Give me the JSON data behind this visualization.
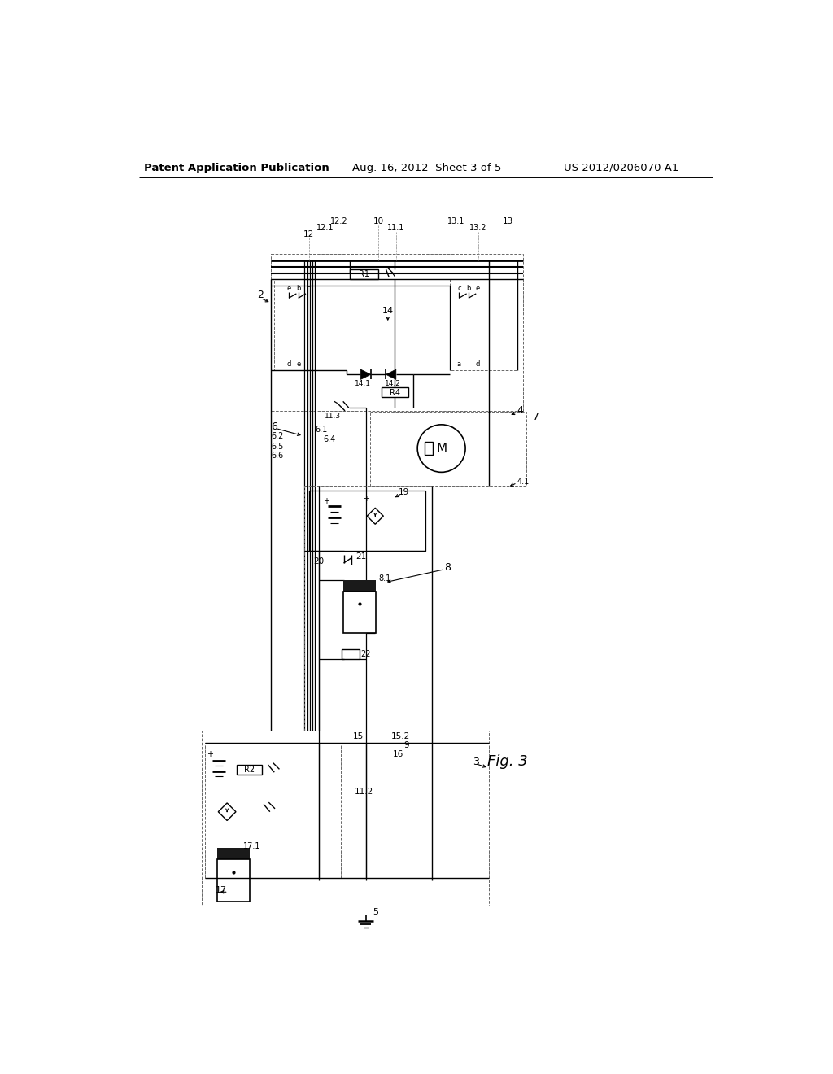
{
  "header_left": "Patent Application Publication",
  "header_center": "Aug. 16, 2012  Sheet 3 of 5",
  "header_right": "US 2012/0206070 A1",
  "figure_label": "Fig. 3",
  "bg_color": "#ffffff"
}
